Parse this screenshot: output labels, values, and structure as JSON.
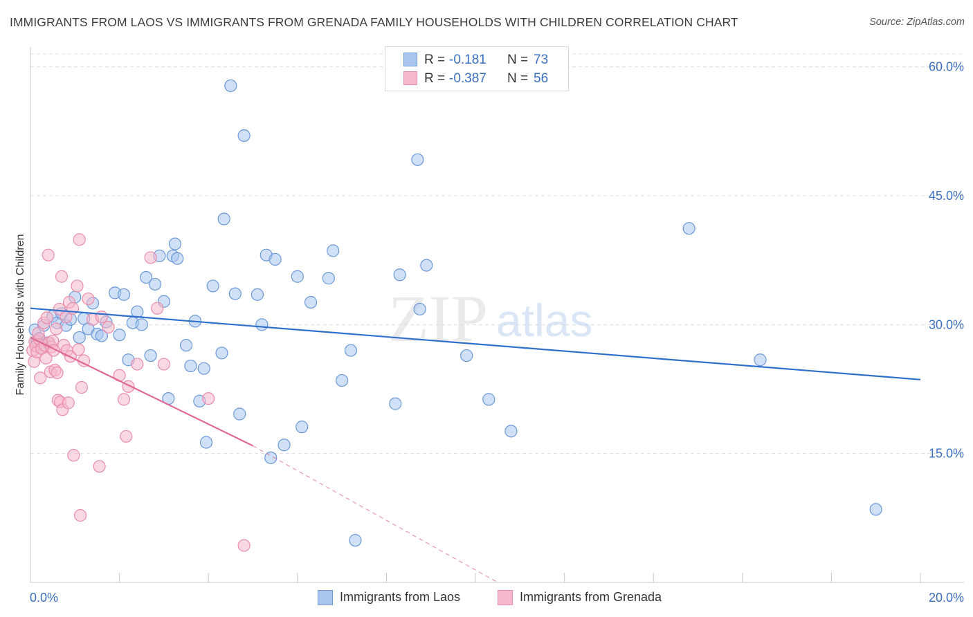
{
  "title": "IMMIGRANTS FROM LAOS VS IMMIGRANTS FROM GRENADA FAMILY HOUSEHOLDS WITH CHILDREN CORRELATION CHART",
  "source": "Source: ZipAtlas.com",
  "watermark": {
    "zip": "ZIP",
    "atlas": "atlas"
  },
  "colors": {
    "laos_fill": "#aac6ee",
    "laos_stroke": "#6a98da",
    "laos_line": "#2f6fcc",
    "grenada_fill": "#f6b8cb",
    "grenada_stroke": "#ea8dab",
    "grenada_line": "#e06893",
    "axis_text": "#3a6fc4",
    "grid": "#dcdcdc"
  },
  "legend_top": [
    {
      "r_label": "R =",
      "r_value": "-0.181",
      "n_label": "N =",
      "n_value": "73"
    },
    {
      "r_label": "R =",
      "r_value": "-0.387",
      "n_label": "N =",
      "n_value": "56"
    }
  ],
  "legend_bottom": [
    "Immigrants from Laos",
    "Immigrants from Grenada"
  ],
  "chart_data": {
    "type": "scatter",
    "title": "IMMIGRANTS FROM LAOS VS IMMIGRANTS FROM GRENADA FAMILY HOUSEHOLDS WITH CHILDREN CORRELATION CHART",
    "xlabel": "",
    "ylabel": "Family Households with Children",
    "xlim": [
      0,
      20
    ],
    "ylim": [
      0,
      61.5
    ],
    "x_tick_labels": [
      "0.0%",
      "20.0%"
    ],
    "y_ticks": [
      15,
      30,
      45,
      60
    ],
    "y_tick_labels": [
      "15.0%",
      "30.0%",
      "45.0%",
      "60.0%"
    ],
    "grid": true,
    "legend_position": "top-center",
    "series": [
      {
        "name": "Immigrants from Laos",
        "r": -0.181,
        "n": 73,
        "trend": {
          "x": [
            0,
            20
          ],
          "y": [
            31.9,
            23.6
          ],
          "extrapolate_dashed": false
        },
        "points": [
          [
            0.1,
            29.4
          ],
          [
            0.2,
            28.4
          ],
          [
            0.3,
            29.9
          ],
          [
            0.4,
            27.9
          ],
          [
            0.5,
            31.0
          ],
          [
            0.6,
            30.2
          ],
          [
            0.7,
            31.3
          ],
          [
            0.8,
            29.9
          ],
          [
            0.9,
            30.6
          ],
          [
            1.0,
            33.2
          ],
          [
            1.1,
            28.5
          ],
          [
            1.2,
            30.7
          ],
          [
            1.3,
            29.5
          ],
          [
            1.4,
            32.5
          ],
          [
            1.5,
            28.9
          ],
          [
            1.6,
            28.7
          ],
          [
            1.7,
            30.3
          ],
          [
            1.9,
            33.7
          ],
          [
            2.0,
            28.8
          ],
          [
            2.1,
            33.5
          ],
          [
            2.2,
            25.9
          ],
          [
            2.3,
            30.2
          ],
          [
            2.4,
            31.5
          ],
          [
            2.5,
            30.0
          ],
          [
            2.6,
            35.5
          ],
          [
            2.7,
            26.4
          ],
          [
            2.8,
            34.7
          ],
          [
            2.9,
            38.0
          ],
          [
            3.0,
            32.7
          ],
          [
            3.1,
            21.4
          ],
          [
            3.2,
            38.0
          ],
          [
            3.25,
            39.4
          ],
          [
            3.3,
            37.7
          ],
          [
            3.5,
            27.6
          ],
          [
            3.6,
            25.2
          ],
          [
            3.7,
            30.4
          ],
          [
            3.8,
            21.1
          ],
          [
            3.9,
            24.9
          ],
          [
            3.95,
            16.3
          ],
          [
            4.1,
            34.5
          ],
          [
            4.3,
            26.7
          ],
          [
            4.35,
            42.3
          ],
          [
            4.5,
            57.8
          ],
          [
            4.6,
            33.6
          ],
          [
            4.7,
            19.6
          ],
          [
            4.8,
            52.0
          ],
          [
            5.1,
            33.5
          ],
          [
            5.2,
            30.0
          ],
          [
            5.3,
            38.1
          ],
          [
            5.4,
            14.5
          ],
          [
            5.5,
            37.6
          ],
          [
            5.7,
            16.0
          ],
          [
            6.0,
            35.6
          ],
          [
            6.1,
            18.1
          ],
          [
            6.3,
            32.6
          ],
          [
            6.7,
            35.4
          ],
          [
            6.8,
            38.6
          ],
          [
            7.0,
            23.5
          ],
          [
            7.2,
            27.0
          ],
          [
            7.3,
            4.9
          ],
          [
            8.2,
            20.8
          ],
          [
            8.3,
            35.8
          ],
          [
            8.7,
            49.2
          ],
          [
            8.75,
            31.8
          ],
          [
            8.9,
            36.9
          ],
          [
            9.8,
            26.4
          ],
          [
            10.3,
            21.3
          ],
          [
            10.8,
            17.6
          ],
          [
            14.8,
            41.2
          ],
          [
            16.4,
            25.9
          ],
          [
            19.0,
            8.5
          ],
          [
            0.15,
            28.1
          ],
          [
            0.25,
            27.3
          ]
        ]
      },
      {
        "name": "Immigrants from Grenada",
        "r": -0.387,
        "n": 56,
        "trend": {
          "x": [
            0,
            5.0
          ],
          "y": [
            28.5,
            15.9
          ],
          "dashed_to": [
            10.5,
            0
          ]
        },
        "points": [
          [
            0.05,
            27.0
          ],
          [
            0.08,
            25.7
          ],
          [
            0.1,
            28.0
          ],
          [
            0.12,
            27.5
          ],
          [
            0.15,
            26.8
          ],
          [
            0.2,
            28.3
          ],
          [
            0.22,
            23.8
          ],
          [
            0.25,
            27.2
          ],
          [
            0.3,
            30.2
          ],
          [
            0.32,
            27.6
          ],
          [
            0.35,
            26.1
          ],
          [
            0.37,
            30.8
          ],
          [
            0.4,
            38.1
          ],
          [
            0.42,
            27.9
          ],
          [
            0.45,
            24.5
          ],
          [
            0.47,
            27.4
          ],
          [
            0.5,
            28.1
          ],
          [
            0.52,
            27.0
          ],
          [
            0.55,
            24.7
          ],
          [
            0.6,
            24.4
          ],
          [
            0.62,
            21.2
          ],
          [
            0.65,
            31.8
          ],
          [
            0.67,
            21.0
          ],
          [
            0.7,
            35.6
          ],
          [
            0.72,
            20.1
          ],
          [
            0.75,
            27.6
          ],
          [
            0.8,
            30.9
          ],
          [
            0.82,
            27.0
          ],
          [
            0.85,
            20.9
          ],
          [
            0.87,
            32.6
          ],
          [
            0.9,
            26.3
          ],
          [
            0.95,
            31.9
          ],
          [
            0.97,
            14.8
          ],
          [
            1.05,
            34.5
          ],
          [
            1.08,
            27.1
          ],
          [
            1.1,
            39.9
          ],
          [
            1.12,
            7.8
          ],
          [
            1.15,
            22.7
          ],
          [
            1.2,
            25.8
          ],
          [
            1.3,
            33.0
          ],
          [
            1.4,
            30.6
          ],
          [
            1.55,
            13.5
          ],
          [
            1.6,
            30.9
          ],
          [
            1.75,
            29.7
          ],
          [
            2.0,
            24.1
          ],
          [
            2.1,
            21.3
          ],
          [
            2.15,
            17.0
          ],
          [
            2.2,
            22.8
          ],
          [
            2.4,
            25.4
          ],
          [
            2.7,
            37.8
          ],
          [
            2.85,
            31.9
          ],
          [
            3.0,
            25.4
          ],
          [
            4.0,
            21.4
          ],
          [
            4.8,
            4.3
          ],
          [
            0.18,
            29.0
          ],
          [
            0.58,
            29.5
          ]
        ]
      }
    ]
  }
}
